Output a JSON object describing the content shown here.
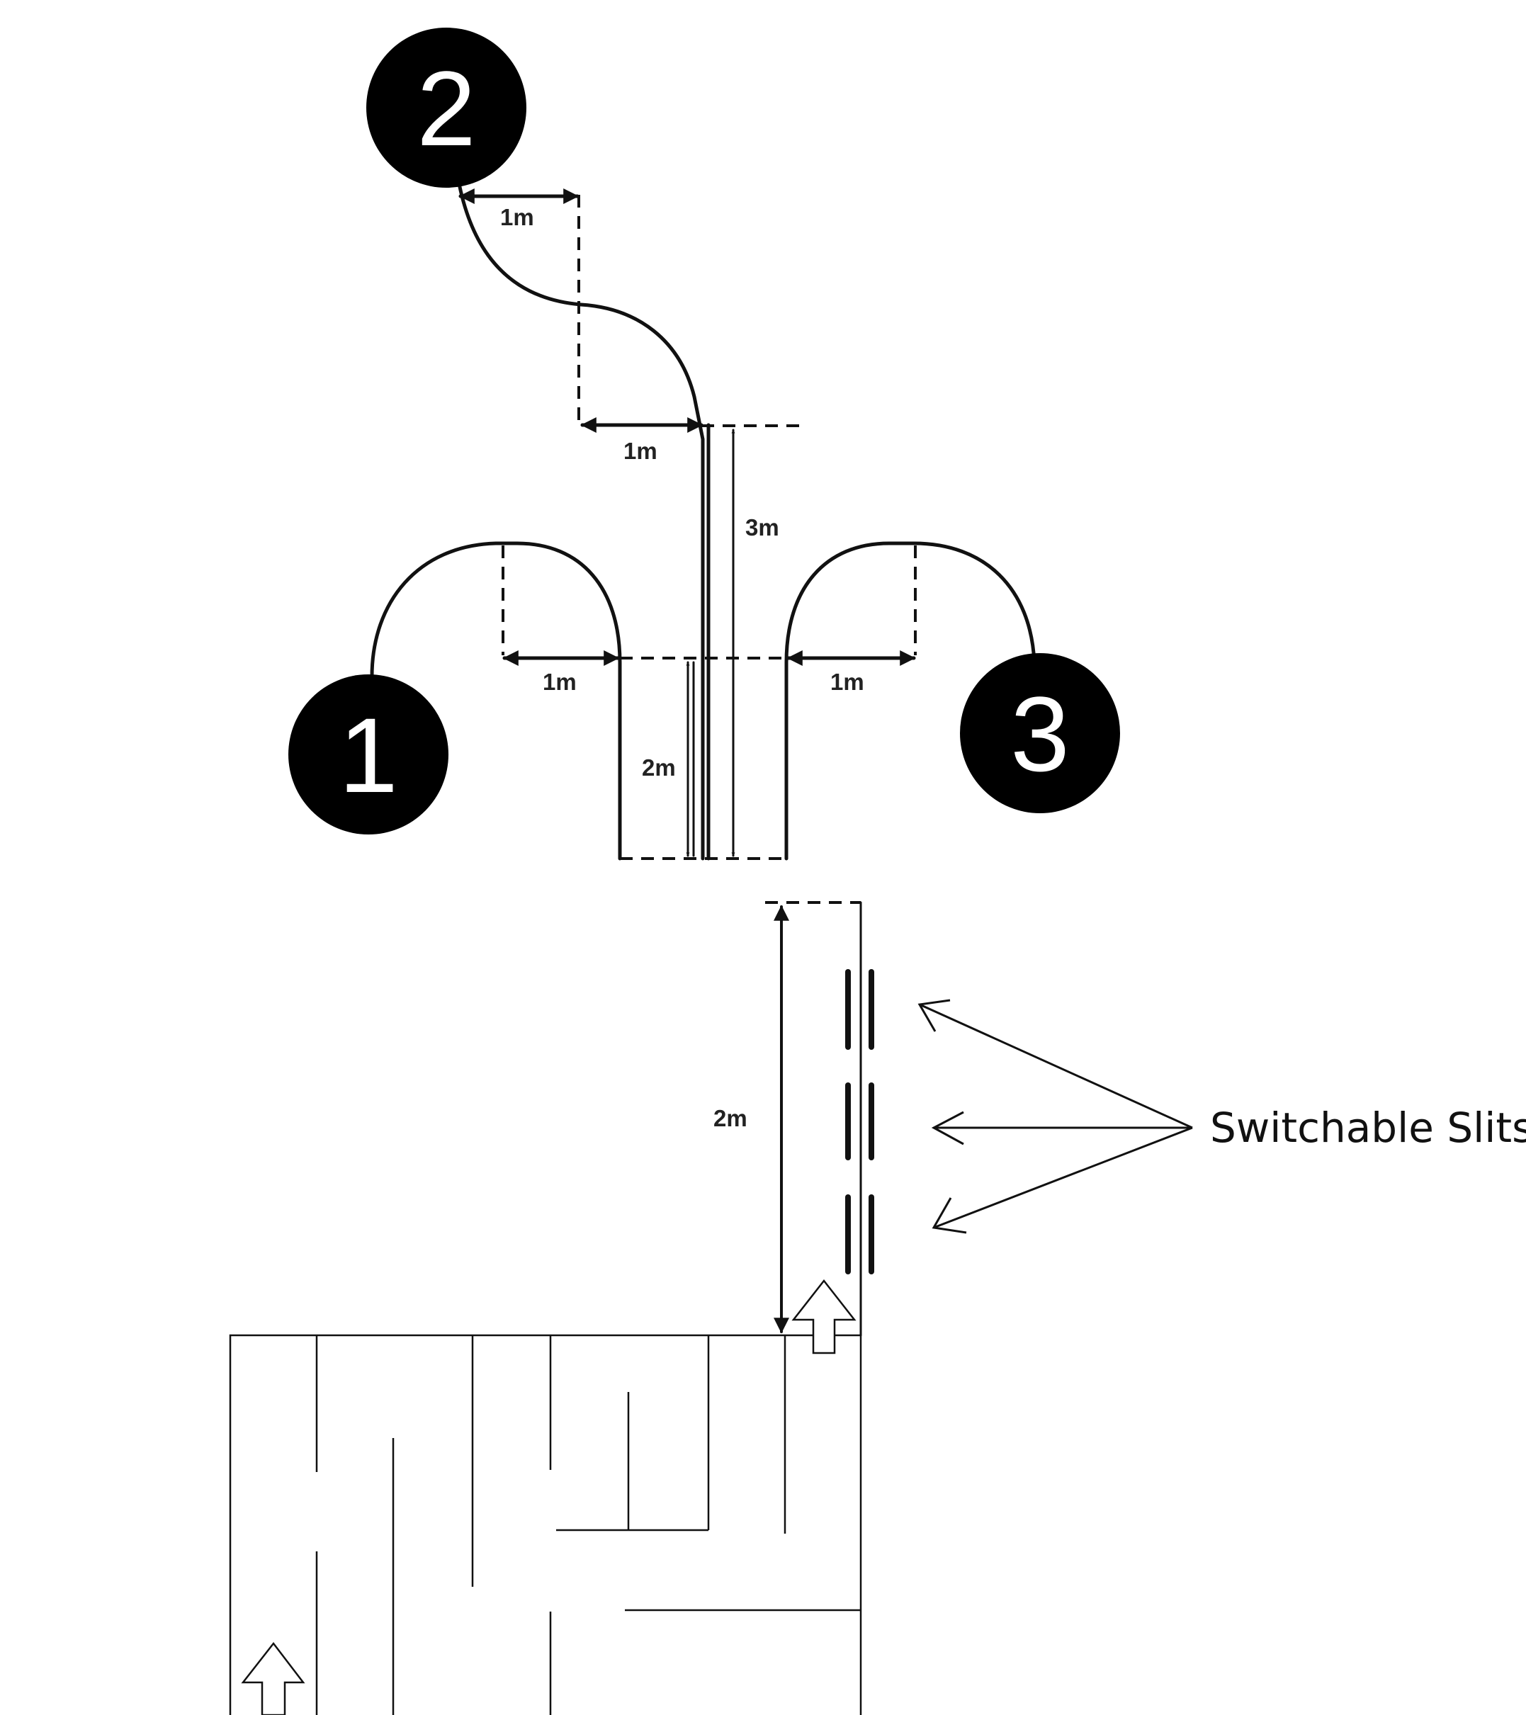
{
  "markers": [
    "2",
    "1",
    "3"
  ],
  "measurements": {
    "top_gap": "1m",
    "mid_gap": "1m",
    "left_gap": "1m",
    "right_gap": "1m",
    "center_short": "2m",
    "center_tall": "3m",
    "slit_run": "2m"
  },
  "callout_label": "Switchable Slits",
  "colors": {
    "ink": "#111111",
    "marker_fill": "#000000",
    "marker_text": "#ffffff"
  }
}
